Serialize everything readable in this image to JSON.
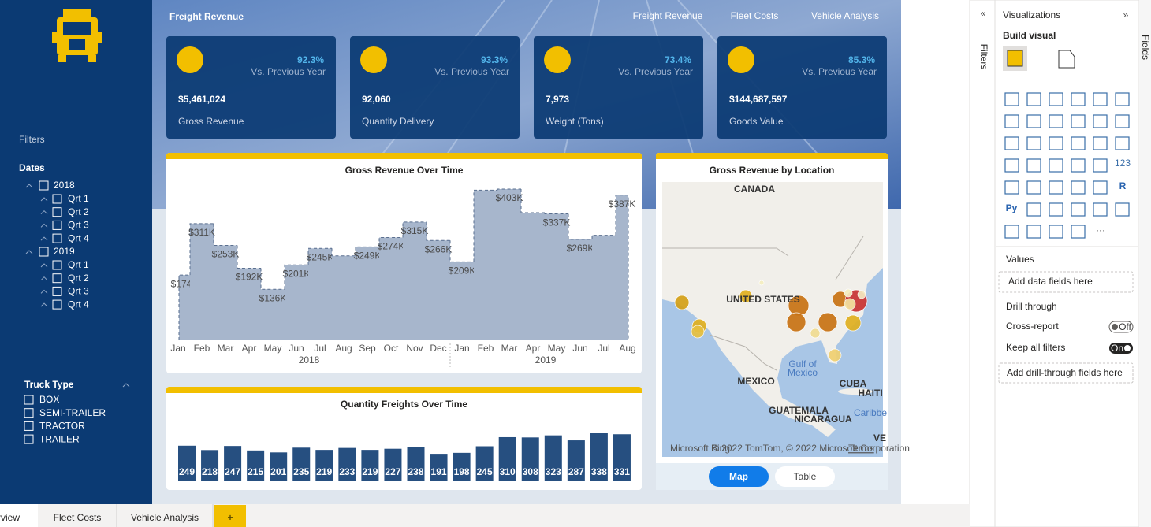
{
  "header": {
    "title": "Freight Revenue",
    "nav": [
      "Freight Revenue",
      "Fleet Costs",
      "Vehicle Analysis"
    ]
  },
  "kpis": [
    {
      "change": "92.3%",
      "change_label": "Vs. Previous Year",
      "value": "$5,461,024",
      "label": "Gross Revenue"
    },
    {
      "change": "93.3%",
      "change_label": "Vs. Previous Year",
      "value": "92,060",
      "label": "Quantity Delivery"
    },
    {
      "change": "73.4%",
      "change_label": "Vs. Previous Year",
      "value": "7,973",
      "label": "Weight (Tons)"
    },
    {
      "change": "85.3%",
      "change_label": "Vs. Previous Year",
      "value": "$144,687,597",
      "label": "Goods Value"
    }
  ],
  "filters": {
    "title": "Filters",
    "dates": {
      "title": "Dates",
      "years": [
        {
          "year": "2018",
          "quarters": [
            "Qrt 1",
            "Qrt 2",
            "Qrt 3",
            "Qrt 4"
          ]
        },
        {
          "year": "2019",
          "quarters": [
            "Qrt 1",
            "Qrt 2",
            "Qrt 3",
            "Qrt 4"
          ]
        }
      ]
    },
    "truck_type": {
      "title": "Truck Type",
      "options": [
        "BOX",
        "SEMI-TRAILER",
        "TRACTOR",
        "TRAILER"
      ]
    }
  },
  "chart_data": [
    {
      "type": "area",
      "title": "Gross Revenue Over Time",
      "categories": [
        "Jan",
        "Feb",
        "Mar",
        "Apr",
        "May",
        "Jun",
        "Jul",
        "Aug",
        "Sep",
        "Oct",
        "Nov",
        "Dec",
        "Jan",
        "Feb",
        "Mar",
        "Apr",
        "May",
        "Jun",
        "Jul",
        "Aug"
      ],
      "year_labels": [
        "2018",
        "2019"
      ],
      "values": [
        174000,
        311000,
        253000,
        192000,
        136000,
        201000,
        245000,
        225000,
        249000,
        274000,
        315000,
        266000,
        209000,
        400000,
        403000,
        340000,
        337000,
        269000,
        280000,
        387000
      ],
      "value_labels": [
        "$174K",
        "$311K",
        "$253K",
        "$192K",
        "$136K",
        "$201K",
        "$245K",
        null,
        "$249K",
        "$274K",
        "$315K",
        "$266K",
        "$209K",
        null,
        "$403K",
        null,
        "$337K",
        "$269K",
        null,
        "$387K"
      ],
      "color": "#a7b6cc"
    },
    {
      "type": "bar",
      "title": "Quantity Freights Over Time",
      "values": [
        249,
        218,
        247,
        215,
        201,
        235,
        219,
        233,
        219,
        227,
        238,
        191,
        198,
        245,
        310,
        308,
        323,
        287,
        338,
        331
      ],
      "color": "#264f80"
    }
  ],
  "map": {
    "title": "Gross Revenue by Location",
    "labels": [
      "CANADA",
      "UNITED STATES",
      "MEXICO",
      "Gulf of",
      "Mexico",
      "CUBA",
      "HAITI",
      "GUATEMALA",
      "NICARAGUA",
      "Caribbe",
      "VE"
    ],
    "bing": "Microsoft Bing",
    "attribution": "© 2022 TomTom, © 2022 Microsoft Corporation",
    "terms": "Terms",
    "buttons": [
      "Map",
      "Table"
    ]
  },
  "visualizations": {
    "title": "Visualizations",
    "build": "Build visual",
    "icon_texts": [
      "123",
      "R",
      "Py",
      "···"
    ],
    "values": "Values",
    "add_data": "Add data fields here",
    "drill": "Drill through",
    "cross_report": "Cross-report",
    "off": "Off",
    "keep": "Keep all filters",
    "on": "On",
    "add_drill": "Add drill-through fields here"
  },
  "panes": {
    "filters": "Filters",
    "fields": "Fields"
  },
  "tabs": [
    "rview",
    "Fleet Costs",
    "Vehicle Analysis",
    "+"
  ]
}
